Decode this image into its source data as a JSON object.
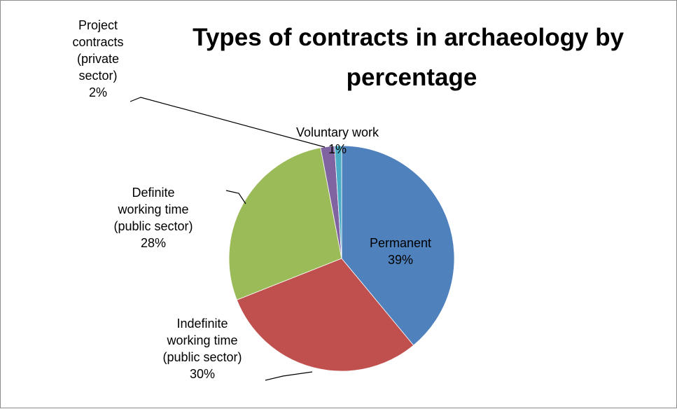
{
  "chart_data": {
    "type": "pie",
    "title": "Types of contracts in archaeology by percentage",
    "title_lines": [
      "Types of contracts in archaeology by",
      "percentage"
    ],
    "start_angle_deg": 0,
    "direction": "clockwise",
    "legend": "none",
    "slices": [
      {
        "name": "Permanent",
        "value": 39,
        "percent_label": "39%",
        "label_lines": [
          "Permanent",
          "39%"
        ],
        "color": "#4f81bd",
        "label_inside": true
      },
      {
        "name": "Indefinite working time (public sector)",
        "value": 30,
        "percent_label": "30%",
        "label_lines": [
          "Indefinite",
          "working time",
          "(public sector)",
          "30%"
        ],
        "color": "#c0504d",
        "label_inside": false
      },
      {
        "name": "Definite working time (public sector)",
        "value": 28,
        "percent_label": "28%",
        "label_lines": [
          "Definite",
          "working time",
          "(public sector)",
          "28%"
        ],
        "color": "#9bbb59",
        "label_inside": false
      },
      {
        "name": "Project contracts (private sector)",
        "value": 2,
        "percent_label": "2%",
        "label_lines": [
          "Project",
          "contracts",
          "(private",
          "sector)",
          "2%"
        ],
        "color": "#8064a2",
        "label_inside": false
      },
      {
        "name": "Voluntary work",
        "value": 1,
        "percent_label": "1%",
        "label_lines": [
          "Voluntary work",
          "1%"
        ],
        "color": "#4bacc6",
        "label_inside": false
      }
    ]
  }
}
